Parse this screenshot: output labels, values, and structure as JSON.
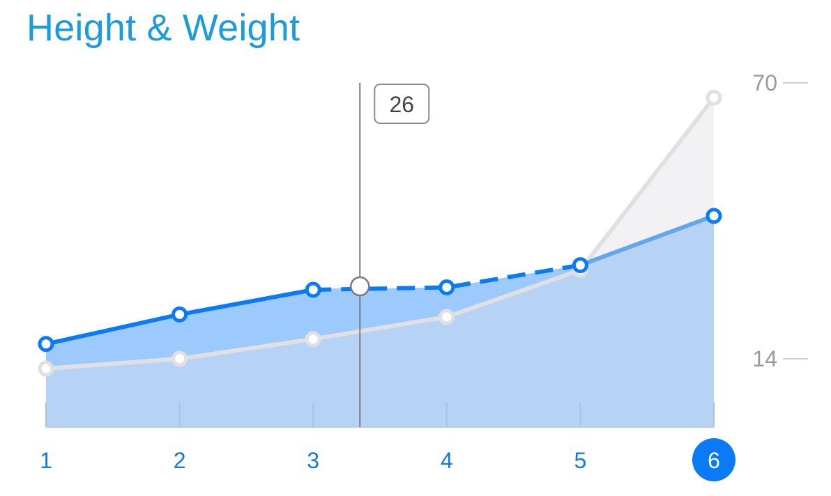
{
  "title": "Height & Weight",
  "colors": {
    "title": "#1a9bdc",
    "accent": "#0a7af5",
    "accent_fill": "#9ccaff",
    "accent_fill_light": "#b6d3f5",
    "secondary_line": "#e0e0e3",
    "secondary_fill": "#f2f2f4",
    "axis_label": "#9a9a9a",
    "cursor": "#7a7a7a"
  },
  "chart_data": {
    "type": "area",
    "x": [
      1,
      2,
      3,
      4,
      5,
      6
    ],
    "x_tick_labels": [
      "1",
      "2",
      "3",
      "4",
      "5",
      "6"
    ],
    "selected_x": "6",
    "y_ticks": [
      14,
      70
    ],
    "y_tick_labels": [
      "14",
      "70"
    ],
    "ylim": [
      10,
      70
    ],
    "series": [
      {
        "values": [
          17,
          23,
          28,
          28.5,
          33,
          43
        ],
        "line": "accent",
        "dashed_segment": [
          3,
          5
        ]
      },
      {
        "values": [
          12,
          14,
          18,
          22.5,
          32,
          67
        ],
        "line": "secondary"
      }
    ],
    "cursor": {
      "x": 3.35,
      "label": "26",
      "value": 28.7
    },
    "legend": "none",
    "grid": false
  }
}
